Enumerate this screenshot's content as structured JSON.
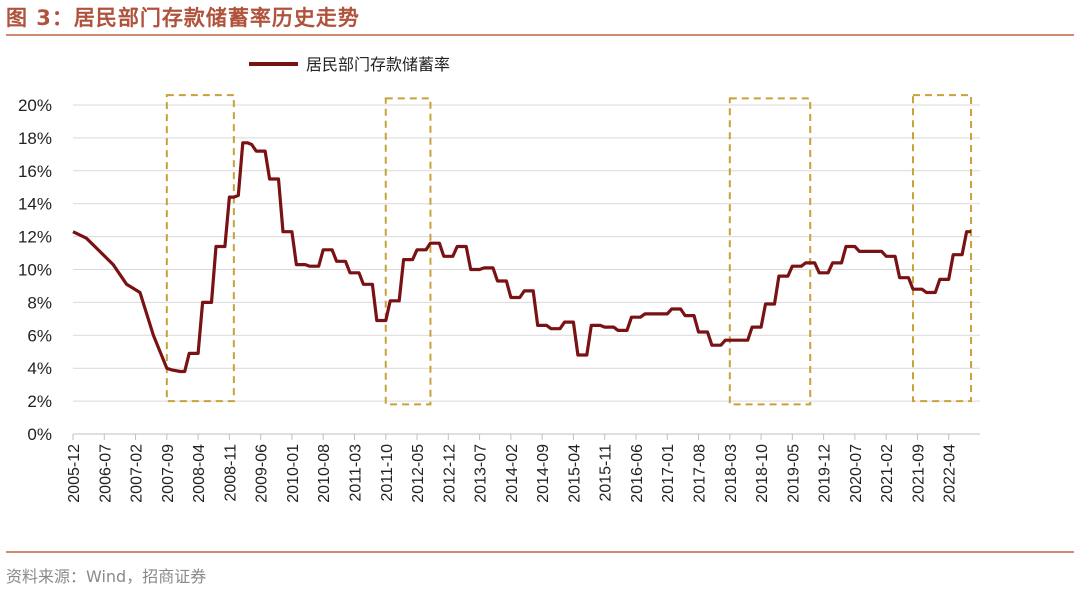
{
  "header": {
    "title": "图 3：居民部门存款储蓄率历史走势"
  },
  "footer": {
    "source": "资料来源：Wind，招商证券"
  },
  "colors": {
    "title": "#B0533D",
    "rule": "#D08B72",
    "series": "#7A1113",
    "highlight_box": "#C9A13A",
    "grid": "#D9D9D9"
  },
  "chart_data": {
    "type": "line",
    "title": "",
    "xlabel": "",
    "ylabel": "",
    "ylim": [
      0,
      20
    ],
    "y_ticks": [
      "0%",
      "2%",
      "4%",
      "6%",
      "8%",
      "10%",
      "12%",
      "14%",
      "16%",
      "18%",
      "20%"
    ],
    "x_tick_labels": [
      "2005-12",
      "2006-07",
      "2007-02",
      "2007-09",
      "2008-04",
      "2008-11",
      "2009-06",
      "2010-01",
      "2010-08",
      "2011-03",
      "2011-10",
      "2012-05",
      "2012-12",
      "2013-07",
      "2014-02",
      "2014-09",
      "2015-04",
      "2015-11",
      "2016-06",
      "2017-01",
      "2017-08",
      "2018-03",
      "2018-10",
      "2019-05",
      "2019-12",
      "2020-07",
      "2021-02",
      "2021-09",
      "2022-04"
    ],
    "grid": "horizontal",
    "legend_position": "top-left",
    "series": [
      {
        "name": "居民部门存款储蓄率",
        "points": [
          [
            "2005-12",
            12.3
          ],
          [
            "2006-03",
            11.9
          ],
          [
            "2006-06",
            11.1
          ],
          [
            "2006-09",
            10.3
          ],
          [
            "2006-12",
            9.1
          ],
          [
            "2007-03",
            8.6
          ],
          [
            "2007-06",
            6.0
          ],
          [
            "2007-09",
            4.0
          ],
          [
            "2007-10",
            3.9
          ],
          [
            "2007-12",
            3.8
          ],
          [
            "2008-01",
            3.8
          ],
          [
            "2008-02",
            4.9
          ],
          [
            "2008-03",
            4.9
          ],
          [
            "2008-04",
            4.9
          ],
          [
            "2008-05",
            8.0
          ],
          [
            "2008-06",
            8.0
          ],
          [
            "2008-07",
            8.0
          ],
          [
            "2008-08",
            11.4
          ],
          [
            "2008-09",
            11.4
          ],
          [
            "2008-10",
            11.4
          ],
          [
            "2008-11",
            14.4
          ],
          [
            "2008-12",
            14.4
          ],
          [
            "2009-01",
            14.5
          ],
          [
            "2009-02",
            17.7
          ],
          [
            "2009-03",
            17.7
          ],
          [
            "2009-04",
            17.6
          ],
          [
            "2009-05",
            17.2
          ],
          [
            "2009-06",
            17.2
          ],
          [
            "2009-07",
            17.2
          ],
          [
            "2009-08",
            15.5
          ],
          [
            "2009-09",
            15.5
          ],
          [
            "2009-10",
            15.5
          ],
          [
            "2009-11",
            12.3
          ],
          [
            "2009-12",
            12.3
          ],
          [
            "2010-01",
            12.3
          ],
          [
            "2010-02",
            10.3
          ],
          [
            "2010-03",
            10.3
          ],
          [
            "2010-04",
            10.3
          ],
          [
            "2010-05",
            10.2
          ],
          [
            "2010-06",
            10.2
          ],
          [
            "2010-07",
            10.2
          ],
          [
            "2010-08",
            11.2
          ],
          [
            "2010-09",
            11.2
          ],
          [
            "2010-10",
            11.2
          ],
          [
            "2010-11",
            10.5
          ],
          [
            "2010-12",
            10.5
          ],
          [
            "2011-01",
            10.5
          ],
          [
            "2011-02",
            9.8
          ],
          [
            "2011-03",
            9.8
          ],
          [
            "2011-04",
            9.8
          ],
          [
            "2011-05",
            9.1
          ],
          [
            "2011-06",
            9.1
          ],
          [
            "2011-07",
            9.1
          ],
          [
            "2011-08",
            6.9
          ],
          [
            "2011-09",
            6.9
          ],
          [
            "2011-10",
            6.9
          ],
          [
            "2011-11",
            8.1
          ],
          [
            "2011-12",
            8.1
          ],
          [
            "2012-01",
            8.1
          ],
          [
            "2012-02",
            10.6
          ],
          [
            "2012-03",
            10.6
          ],
          [
            "2012-04",
            10.6
          ],
          [
            "2012-05",
            11.2
          ],
          [
            "2012-06",
            11.2
          ],
          [
            "2012-07",
            11.2
          ],
          [
            "2012-08",
            11.6
          ],
          [
            "2012-09",
            11.6
          ],
          [
            "2012-10",
            11.6
          ],
          [
            "2012-11",
            10.8
          ],
          [
            "2012-12",
            10.8
          ],
          [
            "2013-01",
            10.8
          ],
          [
            "2013-02",
            11.4
          ],
          [
            "2013-03",
            11.4
          ],
          [
            "2013-04",
            11.4
          ],
          [
            "2013-05",
            10.0
          ],
          [
            "2013-06",
            10.0
          ],
          [
            "2013-07",
            10.0
          ],
          [
            "2013-08",
            10.1
          ],
          [
            "2013-09",
            10.1
          ],
          [
            "2013-10",
            10.1
          ],
          [
            "2013-11",
            9.3
          ],
          [
            "2013-12",
            9.3
          ],
          [
            "2014-01",
            9.3
          ],
          [
            "2014-02",
            8.3
          ],
          [
            "2014-03",
            8.3
          ],
          [
            "2014-04",
            8.3
          ],
          [
            "2014-05",
            8.7
          ],
          [
            "2014-06",
            8.7
          ],
          [
            "2014-07",
            8.7
          ],
          [
            "2014-08",
            6.6
          ],
          [
            "2014-09",
            6.6
          ],
          [
            "2014-10",
            6.6
          ],
          [
            "2014-11",
            6.4
          ],
          [
            "2014-12",
            6.4
          ],
          [
            "2015-01",
            6.4
          ],
          [
            "2015-02",
            6.8
          ],
          [
            "2015-03",
            6.8
          ],
          [
            "2015-04",
            6.8
          ],
          [
            "2015-05",
            4.8
          ],
          [
            "2015-06",
            4.8
          ],
          [
            "2015-07",
            4.8
          ],
          [
            "2015-08",
            6.6
          ],
          [
            "2015-09",
            6.6
          ],
          [
            "2015-10",
            6.6
          ],
          [
            "2015-11",
            6.5
          ],
          [
            "2015-12",
            6.5
          ],
          [
            "2016-01",
            6.5
          ],
          [
            "2016-02",
            6.3
          ],
          [
            "2016-03",
            6.3
          ],
          [
            "2016-04",
            6.3
          ],
          [
            "2016-05",
            7.1
          ],
          [
            "2016-06",
            7.1
          ],
          [
            "2016-07",
            7.1
          ],
          [
            "2016-08",
            7.3
          ],
          [
            "2016-09",
            7.3
          ],
          [
            "2016-10",
            7.3
          ],
          [
            "2016-11",
            7.3
          ],
          [
            "2016-12",
            7.3
          ],
          [
            "2017-01",
            7.3
          ],
          [
            "2017-02",
            7.6
          ],
          [
            "2017-03",
            7.6
          ],
          [
            "2017-04",
            7.6
          ],
          [
            "2017-05",
            7.2
          ],
          [
            "2017-06",
            7.2
          ],
          [
            "2017-07",
            7.2
          ],
          [
            "2017-08",
            6.2
          ],
          [
            "2017-09",
            6.2
          ],
          [
            "2017-10",
            6.2
          ],
          [
            "2017-11",
            5.4
          ],
          [
            "2017-12",
            5.4
          ],
          [
            "2018-01",
            5.4
          ],
          [
            "2018-02",
            5.7
          ],
          [
            "2018-03",
            5.7
          ],
          [
            "2018-04",
            5.7
          ],
          [
            "2018-05",
            5.7
          ],
          [
            "2018-06",
            5.7
          ],
          [
            "2018-07",
            5.7
          ],
          [
            "2018-08",
            6.5
          ],
          [
            "2018-09",
            6.5
          ],
          [
            "2018-10",
            6.5
          ],
          [
            "2018-11",
            7.9
          ],
          [
            "2018-12",
            7.9
          ],
          [
            "2019-01",
            7.9
          ],
          [
            "2019-02",
            9.6
          ],
          [
            "2019-03",
            9.6
          ],
          [
            "2019-04",
            9.6
          ],
          [
            "2019-05",
            10.2
          ],
          [
            "2019-06",
            10.2
          ],
          [
            "2019-07",
            10.2
          ],
          [
            "2019-08",
            10.4
          ],
          [
            "2019-09",
            10.4
          ],
          [
            "2019-10",
            10.4
          ],
          [
            "2019-11",
            9.8
          ],
          [
            "2019-12",
            9.8
          ],
          [
            "2020-01",
            9.8
          ],
          [
            "2020-02",
            10.4
          ],
          [
            "2020-03",
            10.4
          ],
          [
            "2020-04",
            10.4
          ],
          [
            "2020-05",
            11.4
          ],
          [
            "2020-06",
            11.4
          ],
          [
            "2020-07",
            11.4
          ],
          [
            "2020-08",
            11.1
          ],
          [
            "2020-09",
            11.1
          ],
          [
            "2020-10",
            11.1
          ],
          [
            "2020-11",
            11.1
          ],
          [
            "2020-12",
            11.1
          ],
          [
            "2021-01",
            11.1
          ],
          [
            "2021-02",
            10.8
          ],
          [
            "2021-03",
            10.8
          ],
          [
            "2021-04",
            10.8
          ],
          [
            "2021-05",
            9.5
          ],
          [
            "2021-06",
            9.5
          ],
          [
            "2021-07",
            9.5
          ],
          [
            "2021-08",
            8.8
          ],
          [
            "2021-09",
            8.8
          ],
          [
            "2021-10",
            8.8
          ],
          [
            "2021-11",
            8.6
          ],
          [
            "2021-12",
            8.6
          ],
          [
            "2022-01",
            8.6
          ],
          [
            "2022-02",
            9.4
          ],
          [
            "2022-03",
            9.4
          ],
          [
            "2022-04",
            9.4
          ],
          [
            "2022-05",
            10.9
          ],
          [
            "2022-06",
            10.9
          ],
          [
            "2022-07",
            10.9
          ],
          [
            "2022-08",
            12.3
          ],
          [
            "2022-09",
            12.3
          ]
        ]
      }
    ],
    "highlight_periods": [
      {
        "start": "2007-09",
        "end": "2008-12",
        "ymin": 2,
        "ymax": 20.6
      },
      {
        "start": "2011-10",
        "end": "2012-08",
        "ymin": 1.8,
        "ymax": 20.4
      },
      {
        "start": "2018-03",
        "end": "2019-09",
        "ymin": 1.8,
        "ymax": 20.4
      },
      {
        "start": "2021-08",
        "end": "2022-09",
        "ymin": 2,
        "ymax": 20.6
      }
    ]
  }
}
